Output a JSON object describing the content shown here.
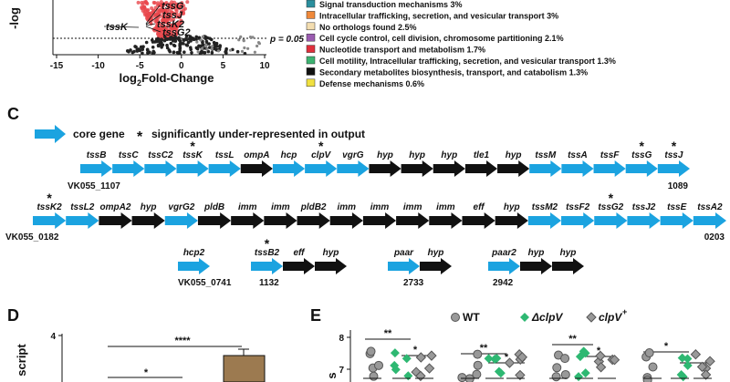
{
  "panel_b": {
    "y_label": "-log",
    "x_label": "log",
    "x_label_sub": "2",
    "x_label_rest": " Fold-Change",
    "xticks": [
      -15,
      -10,
      -5,
      0,
      5,
      10
    ],
    "threshold_label": "p = 0.05",
    "gene_labels": [
      "tssG",
      "tssJ",
      "tssK2",
      "tssG2",
      "tssK"
    ],
    "legend": [
      {
        "label": "Signal transduction mechanisms 3%",
        "color": "#2a8f9e"
      },
      {
        "label": "Intracellular trafficking, secretion, and vesicular transport 3%",
        "color": "#f0893a"
      },
      {
        "label": "No orthologs found 2.5%",
        "color": "#f3ddb0"
      },
      {
        "label": "Cell cycle control, cell division, chromosome partitioning 2.1%",
        "color": "#9a5bb0"
      },
      {
        "label": "Nucleotide transport and metabolism 1.7%",
        "color": "#e0303c"
      },
      {
        "label": "Cell motility, Intracellular trafficking, secretion, and vesicular transport 1.3%",
        "color": "#3cb371"
      },
      {
        "label": "Secondary metabolites biosynthesis, transport, and catabolism 1.3%",
        "color": "#111111"
      },
      {
        "label": "Defense mechanisms 0.6%",
        "color": "#f0e040"
      }
    ]
  },
  "panel_c": {
    "label": "C",
    "key_core": "core gene",
    "key_star": "*",
    "key_star_label": "significantly under-represented in output",
    "rows": [
      {
        "left": "VK055_1107",
        "right": "1089",
        "genes": [
          {
            "name": "tssB",
            "color": "#1ba3e0"
          },
          {
            "name": "tssC",
            "color": "#1ba3e0"
          },
          {
            "name": "tssC2",
            "color": "#1ba3e0"
          },
          {
            "name": "tssK",
            "color": "#1ba3e0",
            "star": "*"
          },
          {
            "name": "tssL",
            "color": "#1ba3e0"
          },
          {
            "name": "ompA",
            "color": "#111111"
          },
          {
            "name": "hcp",
            "color": "#1ba3e0"
          },
          {
            "name": "clpV",
            "color": "#1ba3e0",
            "star": "*"
          },
          {
            "name": "vgrG",
            "color": "#1ba3e0"
          },
          {
            "name": "hyp",
            "color": "#111111"
          },
          {
            "name": "hyp",
            "color": "#111111"
          },
          {
            "name": "hyp",
            "color": "#111111"
          },
          {
            "name": "tle1",
            "color": "#111111"
          },
          {
            "name": "hyp",
            "color": "#111111"
          },
          {
            "name": "tssM",
            "color": "#1ba3e0"
          },
          {
            "name": "tssA",
            "color": "#1ba3e0"
          },
          {
            "name": "tssF",
            "color": "#1ba3e0"
          },
          {
            "name": "tssG",
            "color": "#1ba3e0",
            "star": "*"
          },
          {
            "name": "tssJ",
            "color": "#1ba3e0",
            "star": "*"
          }
        ]
      },
      {
        "left": "VK055_0182",
        "right": "0203",
        "genes": [
          {
            "name": "tssK2",
            "color": "#1ba3e0",
            "star": "*"
          },
          {
            "name": "tssL2",
            "color": "#1ba3e0"
          },
          {
            "name": "ompA2",
            "color": "#111111"
          },
          {
            "name": "hyp",
            "color": "#111111"
          },
          {
            "name": "vgrG2",
            "color": "#1ba3e0"
          },
          {
            "name": "pldB",
            "color": "#111111"
          },
          {
            "name": "imm",
            "color": "#111111"
          },
          {
            "name": "imm",
            "color": "#111111"
          },
          {
            "name": "pldB2",
            "color": "#111111"
          },
          {
            "name": "imm",
            "color": "#111111"
          },
          {
            "name": "imm",
            "color": "#111111"
          },
          {
            "name": "imm",
            "color": "#111111"
          },
          {
            "name": "imm",
            "color": "#111111"
          },
          {
            "name": "eff",
            "color": "#111111"
          },
          {
            "name": "hyp",
            "color": "#111111"
          },
          {
            "name": "tssM2",
            "color": "#1ba3e0"
          },
          {
            "name": "tssF2",
            "color": "#1ba3e0"
          },
          {
            "name": "tssG2",
            "color": "#1ba3e0",
            "star": "*"
          },
          {
            "name": "tssJ2",
            "color": "#1ba3e0"
          },
          {
            "name": "tssE",
            "color": "#1ba3e0"
          },
          {
            "name": "tssA2",
            "color": "#1ba3e0"
          }
        ]
      }
    ],
    "groups": [
      {
        "label": "VK055_0741",
        "genes": [
          {
            "name": "hcp2",
            "color": "#1ba3e0"
          }
        ]
      },
      {
        "label": "1132",
        "genes": [
          {
            "name": "tssB2",
            "color": "#1ba3e0",
            "star": "*"
          },
          {
            "name": "eff",
            "color": "#111111"
          },
          {
            "name": "hyp",
            "color": "#111111"
          }
        ]
      },
      {
        "label": "2733",
        "genes": [
          {
            "name": "paar",
            "color": "#1ba3e0"
          },
          {
            "name": "hyp",
            "color": "#111111"
          }
        ]
      },
      {
        "label": "2942",
        "genes": [
          {
            "name": "paar2",
            "color": "#1ba3e0"
          },
          {
            "name": "hyp",
            "color": "#111111"
          },
          {
            "name": "hyp",
            "color": "#111111"
          }
        ]
      }
    ]
  },
  "panel_d": {
    "label": "D",
    "y_label": "script",
    "ytick": "4",
    "brackets": [
      "****",
      "*"
    ]
  },
  "panel_e": {
    "label": "E",
    "y_label": "s",
    "yticks": [
      "8",
      "7"
    ],
    "legend": [
      {
        "label": "WT"
      },
      {
        "label": "ΔclpV"
      },
      {
        "label": "clpV",
        "sup": "+"
      }
    ],
    "brackets": [
      "**",
      "*",
      "**",
      "*",
      "**",
      "*",
      "*",
      "*"
    ]
  }
}
